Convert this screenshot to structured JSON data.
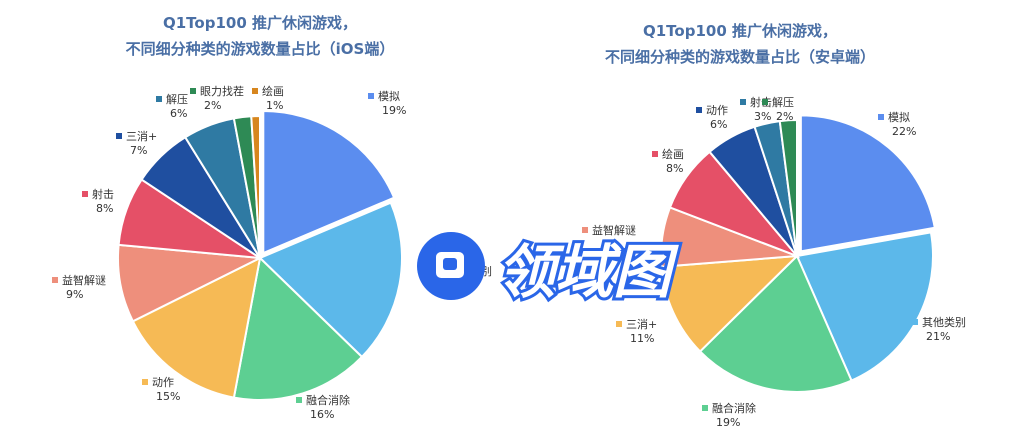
{
  "chart_data": [
    {
      "type": "pie",
      "title_line1": "Q1Top100 推广休闲游戏，",
      "title_line2": "不同细分种类的游戏数量占比（iOS端）",
      "slices": [
        {
          "label": "模拟",
          "value": 19,
          "value_text": "19%",
          "color": "#5b8def"
        },
        {
          "label": "其他类别",
          "value": 19,
          "value_text": "",
          "color": "#5cb8ea"
        },
        {
          "label": "融合消除",
          "value": 16,
          "value_text": "16%",
          "color": "#5dcf92"
        },
        {
          "label": "动作",
          "value": 15,
          "value_text": "15%",
          "color": "#f6ba55"
        },
        {
          "label": "益智解谜",
          "value": 9,
          "value_text": "9%",
          "color": "#ee8f7c"
        },
        {
          "label": "射击",
          "value": 8,
          "value_text": "8%",
          "color": "#e55067"
        },
        {
          "label": "三消+",
          "value": 7,
          "value_text": "7%",
          "color": "#1f4fa0"
        },
        {
          "label": "解压",
          "value": 6,
          "value_text": "6%",
          "color": "#2f7aa3"
        },
        {
          "label": "眼力找茬",
          "value": 2,
          "value_text": "2%",
          "color": "#2e8a55"
        },
        {
          "label": "绘画",
          "value": 1,
          "value_text": "1%",
          "color": "#d7861e"
        }
      ]
    },
    {
      "type": "pie",
      "title_line1": "Q1Top100 推广休闲游戏，",
      "title_line2": "不同细分种类的游戏数量占比（安卓端）",
      "slices": [
        {
          "label": "模拟",
          "value": 22,
          "value_text": "22%",
          "color": "#5b8def"
        },
        {
          "label": "其他类别",
          "value": 21,
          "value_text": "21%",
          "color": "#5cb8ea"
        },
        {
          "label": "融合消除",
          "value": 19,
          "value_text": "19%",
          "color": "#5dcf92"
        },
        {
          "label": "三消+",
          "value": 11,
          "value_text": "11%",
          "color": "#f6ba55"
        },
        {
          "label": "益智解谜",
          "value": 7,
          "value_text": "",
          "color": "#ee8f7c"
        },
        {
          "label": "绘画",
          "value": 8,
          "value_text": "8%",
          "color": "#e55067"
        },
        {
          "label": "动作",
          "value": 6,
          "value_text": "6%",
          "color": "#1f4fa0"
        },
        {
          "label": "射击",
          "value": 3,
          "value_text": "3%",
          "color": "#2f7aa3"
        },
        {
          "label": "解压",
          "value": 2,
          "value_text": "2%",
          "color": "#2e8a55"
        }
      ]
    }
  ],
  "watermark": {
    "text": "领域图"
  }
}
